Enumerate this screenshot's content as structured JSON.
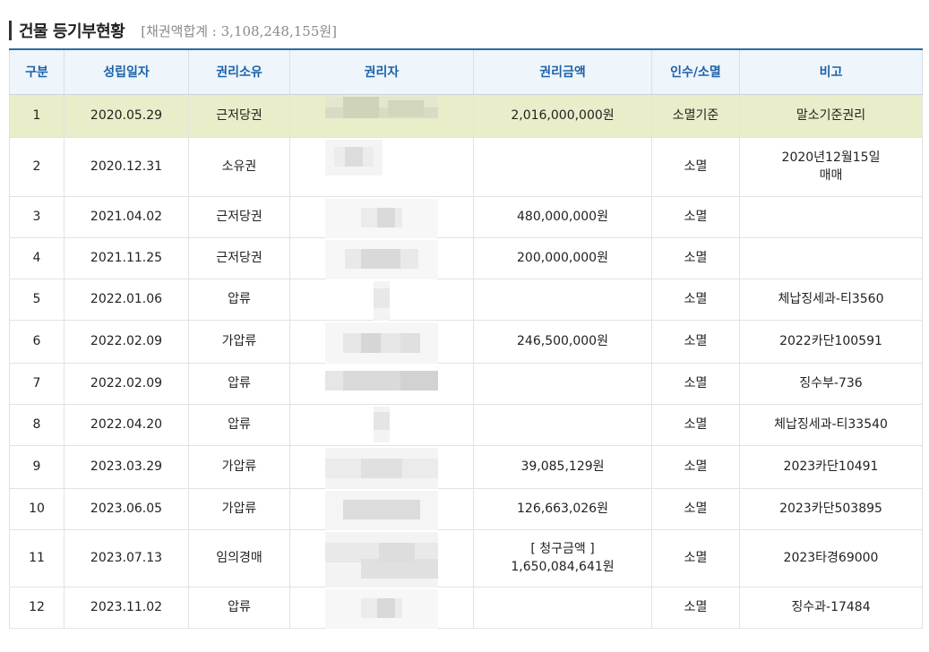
{
  "header": {
    "title": "건물 등기부현황",
    "summary": "[채권액합계 : 3,108,248,155원]"
  },
  "table": {
    "columns": [
      "구분",
      "성립일자",
      "권리소유",
      "권리자",
      "권리금액",
      "인수/소멸",
      "비고"
    ],
    "rows": [
      {
        "no": "1",
        "date": "2020.05.29",
        "type": "근저당권",
        "holder": "",
        "amount": "2,016,000,000원",
        "status": "소멸기준",
        "note": "말소기준권리"
      },
      {
        "no": "2",
        "date": "2020.12.31",
        "type": "소유권",
        "holder": "",
        "amount": "",
        "status": "소멸",
        "note": "2020년12월15일",
        "note2": "매매"
      },
      {
        "no": "3",
        "date": "2021.04.02",
        "type": "근저당권",
        "holder": "",
        "amount": "480,000,000원",
        "status": "소멸",
        "note": ""
      },
      {
        "no": "4",
        "date": "2021.11.25",
        "type": "근저당권",
        "holder": "",
        "amount": "200,000,000원",
        "status": "소멸",
        "note": ""
      },
      {
        "no": "5",
        "date": "2022.01.06",
        "type": "압류",
        "holder": "",
        "amount": "",
        "status": "소멸",
        "note": "체납징세과-티3560"
      },
      {
        "no": "6",
        "date": "2022.02.09",
        "type": "가압류",
        "holder": "",
        "amount": "246,500,000원",
        "status": "소멸",
        "note": "2022카단100591"
      },
      {
        "no": "7",
        "date": "2022.02.09",
        "type": "압류",
        "holder": "",
        "amount": "",
        "status": "소멸",
        "note": "징수부-736"
      },
      {
        "no": "8",
        "date": "2022.04.20",
        "type": "압류",
        "holder": "",
        "amount": "",
        "status": "소멸",
        "note": "체납징세과-티33540"
      },
      {
        "no": "9",
        "date": "2023.03.29",
        "type": "가압류",
        "holder": "",
        "amount": "39,085,129원",
        "status": "소멸",
        "note": "2023카단10491"
      },
      {
        "no": "10",
        "date": "2023.06.05",
        "type": "가압류",
        "holder": "",
        "amount": "126,663,026원",
        "status": "소멸",
        "note": "2023카단503895"
      },
      {
        "no": "11",
        "date": "2023.07.13",
        "type": "임의경매",
        "holder": "",
        "amount_label": "[ 청구금액 ]",
        "amount": "1,650,084,641원",
        "status": "소멸",
        "note": "2023타경69000"
      },
      {
        "no": "12",
        "date": "2023.11.02",
        "type": "압류",
        "holder": "",
        "amount": "",
        "status": "소멸",
        "note": "징수과-17484"
      }
    ]
  },
  "colors": {
    "header_text": "#1c62a8",
    "header_bg": "#eef5fb",
    "highlight_row": "#e9edc9",
    "red_text": "#e0201c"
  }
}
